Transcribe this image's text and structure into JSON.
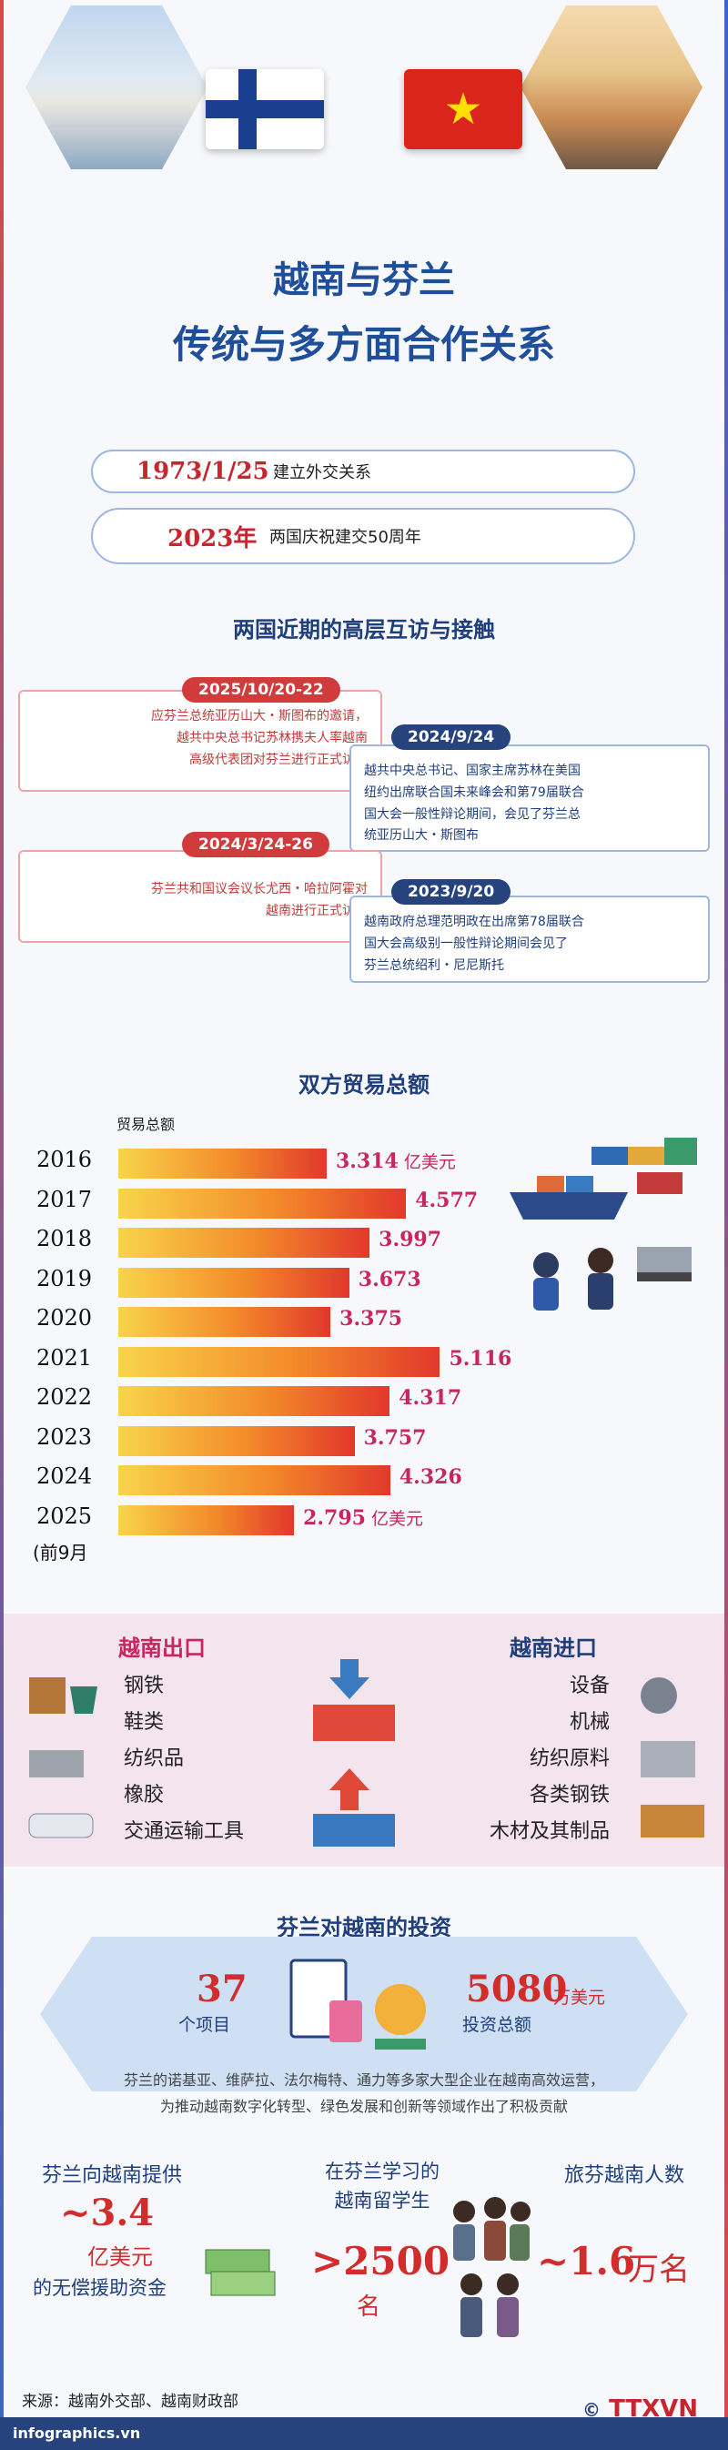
{
  "header": {
    "title_line1": "越南与芬兰",
    "title_line2": "传统与多方面合作关系",
    "finland_flag_icon": "finland-flag",
    "vietnam_flag_icon": "vietnam-flag"
  },
  "milestones": [
    {
      "date": "1973/1/25",
      "text": "建立外交关系"
    },
    {
      "date": "2023年",
      "text": "两国庆祝建交50周年"
    }
  ],
  "visits": {
    "heading": "两国近期的高层互访与接触",
    "items": [
      {
        "date": "2025/10/20-22",
        "lines": [
          "应芬兰总统亚历山大・斯图布的邀请，",
          "越共中央总书记苏林携夫人率越南",
          "高级代表团对芬兰进行正式访问"
        ]
      },
      {
        "date": "2024/9/24",
        "lines": [
          "越共中央总书记、国家主席苏林在美国",
          "纽约出席联合国未来峰会和第79届联合",
          "国大会一般性辩论期间，会见了芬兰总",
          "统亚历山大・斯图布"
        ]
      },
      {
        "date": "2024/3/24-26",
        "lines": [
          "芬兰共和国议会议长尤西・哈拉阿霍对",
          "越南进行正式访问"
        ]
      },
      {
        "date": "2023/9/20",
        "lines": [
          "越南政府总理范明政在出席第78届联合",
          "国大会高级别一般性辩论期间会见了",
          "芬兰总统绍利・尼尼斯托"
        ]
      }
    ]
  },
  "trade": {
    "heading": "双方贸易总额",
    "label": "贸易总额",
    "first_unit": "亿美元",
    "last_unit": "亿美元",
    "last_note": "(前9月"
  },
  "chart_data": {
    "type": "bar",
    "orientation": "horizontal",
    "categories": [
      "2016",
      "2017",
      "2018",
      "2019",
      "2020",
      "2021",
      "2022",
      "2023",
      "2024",
      "2025"
    ],
    "values": [
      3.314,
      4.577,
      3.997,
      3.673,
      3.375,
      5.116,
      4.317,
      3.757,
      4.326,
      2.795
    ],
    "value_labels": [
      "3.314",
      "4.577",
      "3.997",
      "3.673",
      "3.375",
      "5.116",
      "4.317",
      "3.757",
      "4.326",
      "2.795"
    ],
    "xlim": [
      0,
      5.5
    ],
    "grid": false
  },
  "exports": {
    "heading": "越南出口",
    "items": [
      "钢铁",
      "鞋类",
      "纺织品",
      "橡胶",
      "交通运输工具"
    ]
  },
  "imports": {
    "heading": "越南进口",
    "items": [
      "设备",
      "机械",
      "纺织原料",
      "各类钢铁",
      "木材及其制品"
    ]
  },
  "investment": {
    "heading": "芬兰对越南的投资",
    "projects_value": "37",
    "projects_label": "个项目",
    "capital_value": "5080",
    "capital_unit": "万美元",
    "capital_label": "投资总额",
    "description_lines": [
      "芬兰的诺基亚、维萨拉、法尔梅特、通力等多家大型企业在越南高效运营，",
      "为推动越南数字化转型、绿色发展和创新等领域作出了积极贡献"
    ]
  },
  "aid": {
    "heading": "芬兰向越南提供",
    "value": "~3.4",
    "unit": "亿美元",
    "label": "的无偿援助资金"
  },
  "students": {
    "heading_line1": "在芬兰学习的",
    "heading_line2": "越南留学生",
    "value": ">2500",
    "unit": "名"
  },
  "tourists": {
    "heading": "旅芬越南人数",
    "value": "~1.6",
    "unit": "万名"
  },
  "footer": {
    "source": "来源：越南外交部、越南财政部",
    "site": "infographics.vn",
    "copyright": "©",
    "logo": "TTXVN"
  },
  "colors": {
    "accent_red": "#d12d2d",
    "navy": "#27437e",
    "bar_start": "#f9d44a",
    "bar_end": "#e2382c"
  }
}
